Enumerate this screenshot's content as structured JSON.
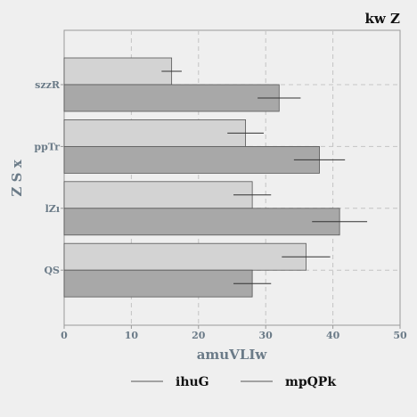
{
  "chart_data": {
    "type": "bar",
    "orientation": "horizontal",
    "title": "kw  Z",
    "xlabel": "amuVLIw",
    "ylabel": "Z S x",
    "categories": [
      "szzR",
      "ppTr",
      "lZı",
      "QS"
    ],
    "xlim": [
      0,
      50
    ],
    "xticks": [
      "0",
      "10",
      "20",
      "30",
      "40",
      "50"
    ],
    "grid": true,
    "legend_position": "bottom",
    "series": [
      {
        "name": "ihuG",
        "color": "#d3d3d3",
        "values": [
          16,
          27,
          28,
          36
        ],
        "errors": [
          1.5,
          2.7,
          2.8,
          3.6
        ]
      },
      {
        "name": "mpQPk",
        "color": "#a8a8a8",
        "values": [
          32,
          38,
          41,
          28
        ],
        "errors": [
          3.2,
          3.8,
          4.1,
          2.8
        ]
      }
    ]
  }
}
